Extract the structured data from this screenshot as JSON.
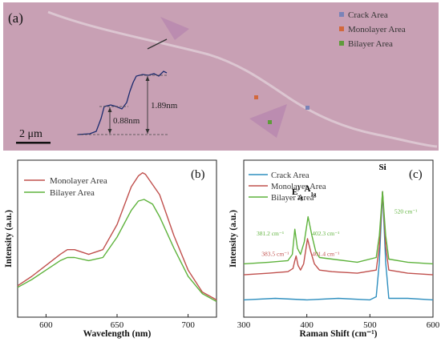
{
  "panel_a": {
    "label": "(a)",
    "legend": [
      {
        "label": "Crack Area",
        "color": "#7a83b8"
      },
      {
        "label": "Monolayer Area",
        "color": "#d2683c"
      },
      {
        "label": "Bilayer Area",
        "color": "#5f9b3b"
      }
    ],
    "height_labels": [
      "0.88nm",
      "1.89nm"
    ],
    "scalebar": "2 μm",
    "colors": {
      "background": "#c8a0b4",
      "flake": "#bf8fb2",
      "crack": "#d8c0cc",
      "profile": "#1a2a6e"
    }
  },
  "chart_data": [
    {
      "type": "line",
      "panel_label": "(b)",
      "xlabel": "Wavelength (nm)",
      "ylabel": "Intensity (a.u.)",
      "xlim": [
        580,
        720
      ],
      "ylim": [
        0,
        1
      ],
      "x_ticks": [
        600,
        650,
        700
      ],
      "legend_position": "top-left",
      "series": [
        {
          "name": "Monolayer Area",
          "color": "#c0504d",
          "points": [
            [
              580,
              0.2
            ],
            [
              590,
              0.26
            ],
            [
              600,
              0.33
            ],
            [
              610,
              0.4
            ],
            [
              615,
              0.43
            ],
            [
              620,
              0.43
            ],
            [
              630,
              0.4
            ],
            [
              640,
              0.43
            ],
            [
              650,
              0.59
            ],
            [
              660,
              0.83
            ],
            [
              665,
              0.9
            ],
            [
              668,
              0.92
            ],
            [
              670,
              0.91
            ],
            [
              680,
              0.78
            ],
            [
              690,
              0.52
            ],
            [
              700,
              0.3
            ],
            [
              710,
              0.16
            ],
            [
              720,
              0.11
            ]
          ]
        },
        {
          "name": "Bilayer Area",
          "color": "#5fb33d",
          "points": [
            [
              580,
              0.19
            ],
            [
              590,
              0.24
            ],
            [
              600,
              0.3
            ],
            [
              610,
              0.36
            ],
            [
              615,
              0.38
            ],
            [
              620,
              0.38
            ],
            [
              630,
              0.36
            ],
            [
              640,
              0.38
            ],
            [
              650,
              0.51
            ],
            [
              660,
              0.68
            ],
            [
              665,
              0.74
            ],
            [
              669,
              0.75
            ],
            [
              675,
              0.72
            ],
            [
              680,
              0.64
            ],
            [
              690,
              0.44
            ],
            [
              700,
              0.26
            ],
            [
              710,
              0.15
            ],
            [
              720,
              0.1
            ]
          ]
        }
      ]
    },
    {
      "type": "line",
      "panel_label": "(c)",
      "xlabel": "Raman Shift (cm⁻¹)",
      "ylabel": "Intensity (a.u.)",
      "xlim": [
        300,
        600
      ],
      "ylim": [
        0,
        1
      ],
      "x_ticks": [
        300,
        400,
        500,
        600
      ],
      "legend_position": "top-left",
      "series": [
        {
          "name": "Crack Area",
          "color": "#2f8fbf",
          "points": [
            [
              300,
              0.11
            ],
            [
              350,
              0.12
            ],
            [
              400,
              0.11
            ],
            [
              450,
              0.12
            ],
            [
              500,
              0.11
            ],
            [
              510,
              0.13
            ],
            [
              515,
              0.35
            ],
            [
              520,
              0.8
            ],
            [
              525,
              0.35
            ],
            [
              530,
              0.12
            ],
            [
              560,
              0.12
            ],
            [
              600,
              0.11
            ]
          ]
        },
        {
          "name": "Monolayer Area",
          "color": "#c0504d",
          "points": [
            [
              300,
              0.27
            ],
            [
              340,
              0.28
            ],
            [
              370,
              0.29
            ],
            [
              378,
              0.31
            ],
            [
              381,
              0.36
            ],
            [
              383,
              0.39
            ],
            [
              386,
              0.33
            ],
            [
              390,
              0.3
            ],
            [
              395,
              0.34
            ],
            [
              401,
              0.5
            ],
            [
              406,
              0.42
            ],
            [
              412,
              0.34
            ],
            [
              420,
              0.3
            ],
            [
              440,
              0.29
            ],
            [
              480,
              0.28
            ],
            [
              510,
              0.3
            ],
            [
              515,
              0.45
            ],
            [
              520,
              0.8
            ],
            [
              525,
              0.45
            ],
            [
              530,
              0.3
            ],
            [
              560,
              0.28
            ],
            [
              600,
              0.27
            ]
          ]
        },
        {
          "name": "Bilayer Area",
          "color": "#5fb33d",
          "points": [
            [
              300,
              0.34
            ],
            [
              340,
              0.35
            ],
            [
              370,
              0.36
            ],
            [
              377,
              0.4
            ],
            [
              381,
              0.56
            ],
            [
              385,
              0.44
            ],
            [
              390,
              0.4
            ],
            [
              396,
              0.48
            ],
            [
              402,
              0.64
            ],
            [
              408,
              0.52
            ],
            [
              414,
              0.42
            ],
            [
              420,
              0.38
            ],
            [
              440,
              0.37
            ],
            [
              480,
              0.35
            ],
            [
              510,
              0.38
            ],
            [
              515,
              0.52
            ],
            [
              520,
              0.8
            ],
            [
              525,
              0.52
            ],
            [
              530,
              0.37
            ],
            [
              560,
              0.35
            ],
            [
              600,
              0.34
            ]
          ]
        }
      ],
      "annotations": [
        {
          "text": "E",
          "x": 381,
          "y": 0.78,
          "color": "#000000",
          "weight": "bold"
        },
        {
          "text": "2g",
          "x": 385,
          "y": 0.75,
          "color": "#000000",
          "weight": "bold",
          "size": "small"
        },
        {
          "text": "1",
          "x": 385,
          "y": 0.81,
          "color": "#000000",
          "weight": "bold",
          "size": "small"
        },
        {
          "text": "A",
          "x": 401,
          "y": 0.8,
          "color": "#000000",
          "weight": "bold"
        },
        {
          "text": "1g",
          "x": 406,
          "y": 0.77,
          "color": "#000000",
          "weight": "bold",
          "size": "small"
        },
        {
          "text": "Si",
          "x": 520,
          "y": 0.94,
          "color": "#000000",
          "weight": "bold"
        },
        {
          "text": "381.2 cm⁻¹",
          "x": 342,
          "y": 0.52,
          "color": "#5fb33d"
        },
        {
          "text": "402.3 cm⁻¹",
          "x": 430,
          "y": 0.52,
          "color": "#5fb33d"
        },
        {
          "text": "383.5 cm⁻¹",
          "x": 350,
          "y": 0.39,
          "color": "#c0504d"
        },
        {
          "text": "401.4 cm⁻¹",
          "x": 430,
          "y": 0.39,
          "color": "#c0504d"
        },
        {
          "text": "520 cm⁻¹",
          "x": 557,
          "y": 0.66,
          "color": "#5fb33d"
        }
      ]
    }
  ]
}
